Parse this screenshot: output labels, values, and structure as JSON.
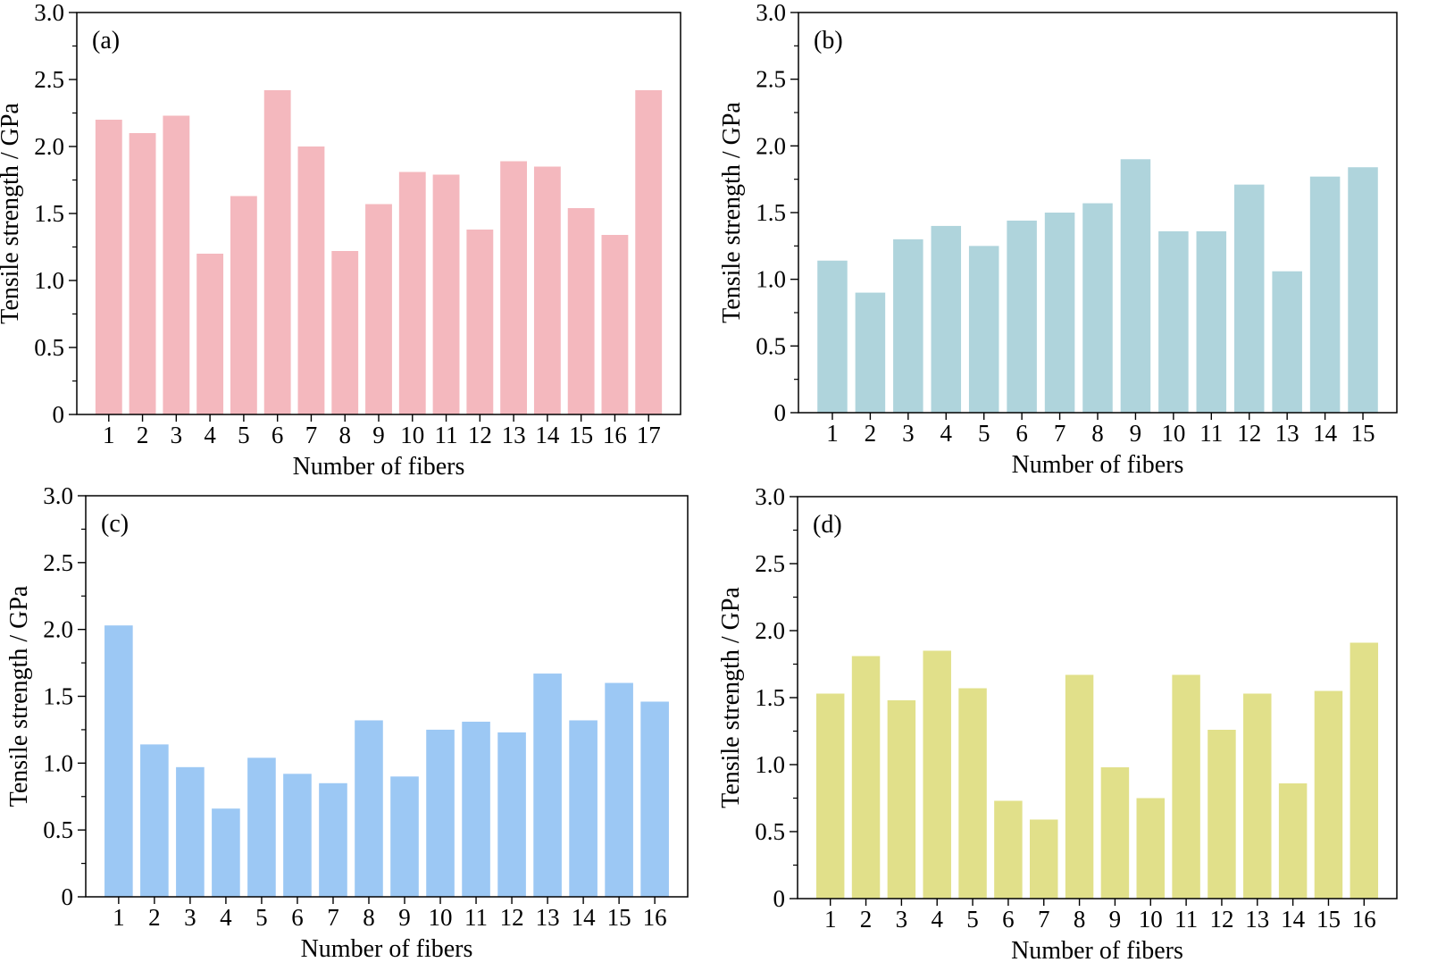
{
  "chart_data": [
    {
      "type": "bar",
      "panel_label": "(a)",
      "title": "",
      "xlabel": "Number of fibers",
      "ylabel": "Tensile strength / GPa",
      "categories": [
        "1",
        "2",
        "3",
        "4",
        "5",
        "6",
        "7",
        "8",
        "9",
        "10",
        "11",
        "12",
        "13",
        "14",
        "15",
        "16",
        "17"
      ],
      "values": [
        2.2,
        2.1,
        2.23,
        1.2,
        1.63,
        2.42,
        2.0,
        1.22,
        1.57,
        1.81,
        1.79,
        1.38,
        1.89,
        1.85,
        1.54,
        1.34,
        2.42
      ],
      "ylim": [
        0,
        3.0
      ],
      "yticks": [
        "0",
        "0.5",
        "1.0",
        "1.5",
        "2.0",
        "2.5",
        "3.0"
      ],
      "color": "#f4b8be",
      "grid": false
    },
    {
      "type": "bar",
      "panel_label": "(b)",
      "title": "",
      "xlabel": "Number of fibers",
      "ylabel": "Tensile strength / GPa",
      "categories": [
        "1",
        "2",
        "3",
        "4",
        "5",
        "6",
        "7",
        "8",
        "9",
        "10",
        "11",
        "12",
        "13",
        "14",
        "15"
      ],
      "values": [
        1.14,
        0.9,
        1.3,
        1.4,
        1.25,
        1.44,
        1.5,
        1.57,
        1.9,
        1.36,
        1.36,
        1.71,
        1.06,
        1.77,
        1.84
      ],
      "ylim": [
        0,
        3.0
      ],
      "yticks": [
        "0",
        "0.5",
        "1.0",
        "1.5",
        "2.0",
        "2.5",
        "3.0"
      ],
      "color": "#afd4dc",
      "grid": false
    },
    {
      "type": "bar",
      "panel_label": "(c)",
      "title": "",
      "xlabel": "Number of fibers",
      "ylabel": "Tensile strength / GPa",
      "categories": [
        "1",
        "2",
        "3",
        "4",
        "5",
        "6",
        "7",
        "8",
        "9",
        "10",
        "11",
        "12",
        "13",
        "14",
        "15",
        "16"
      ],
      "values": [
        2.03,
        1.14,
        0.97,
        0.66,
        1.04,
        0.92,
        0.85,
        1.32,
        0.9,
        1.25,
        1.31,
        1.23,
        1.67,
        1.32,
        1.6,
        1.46
      ],
      "ylim": [
        0,
        3.0
      ],
      "yticks": [
        "0",
        "0.5",
        "1.0",
        "1.5",
        "2.0",
        "2.5",
        "3.0"
      ],
      "color": "#9cc8f4",
      "grid": false
    },
    {
      "type": "bar",
      "panel_label": "(d)",
      "title": "",
      "xlabel": "Number of fibers",
      "ylabel": "Tensile strength / GPa",
      "categories": [
        "1",
        "2",
        "3",
        "4",
        "5",
        "6",
        "7",
        "8",
        "9",
        "10",
        "11",
        "12",
        "13",
        "14",
        "15",
        "16"
      ],
      "values": [
        1.53,
        1.81,
        1.48,
        1.85,
        1.57,
        0.73,
        0.59,
        1.67,
        0.98,
        0.75,
        1.67,
        1.26,
        1.53,
        0.86,
        1.55,
        1.91
      ],
      "ylim": [
        0,
        3.0
      ],
      "yticks": [
        "0",
        "0.5",
        "1.0",
        "1.5",
        "2.0",
        "2.5",
        "3.0"
      ],
      "color": "#e1e08a",
      "grid": false
    }
  ]
}
